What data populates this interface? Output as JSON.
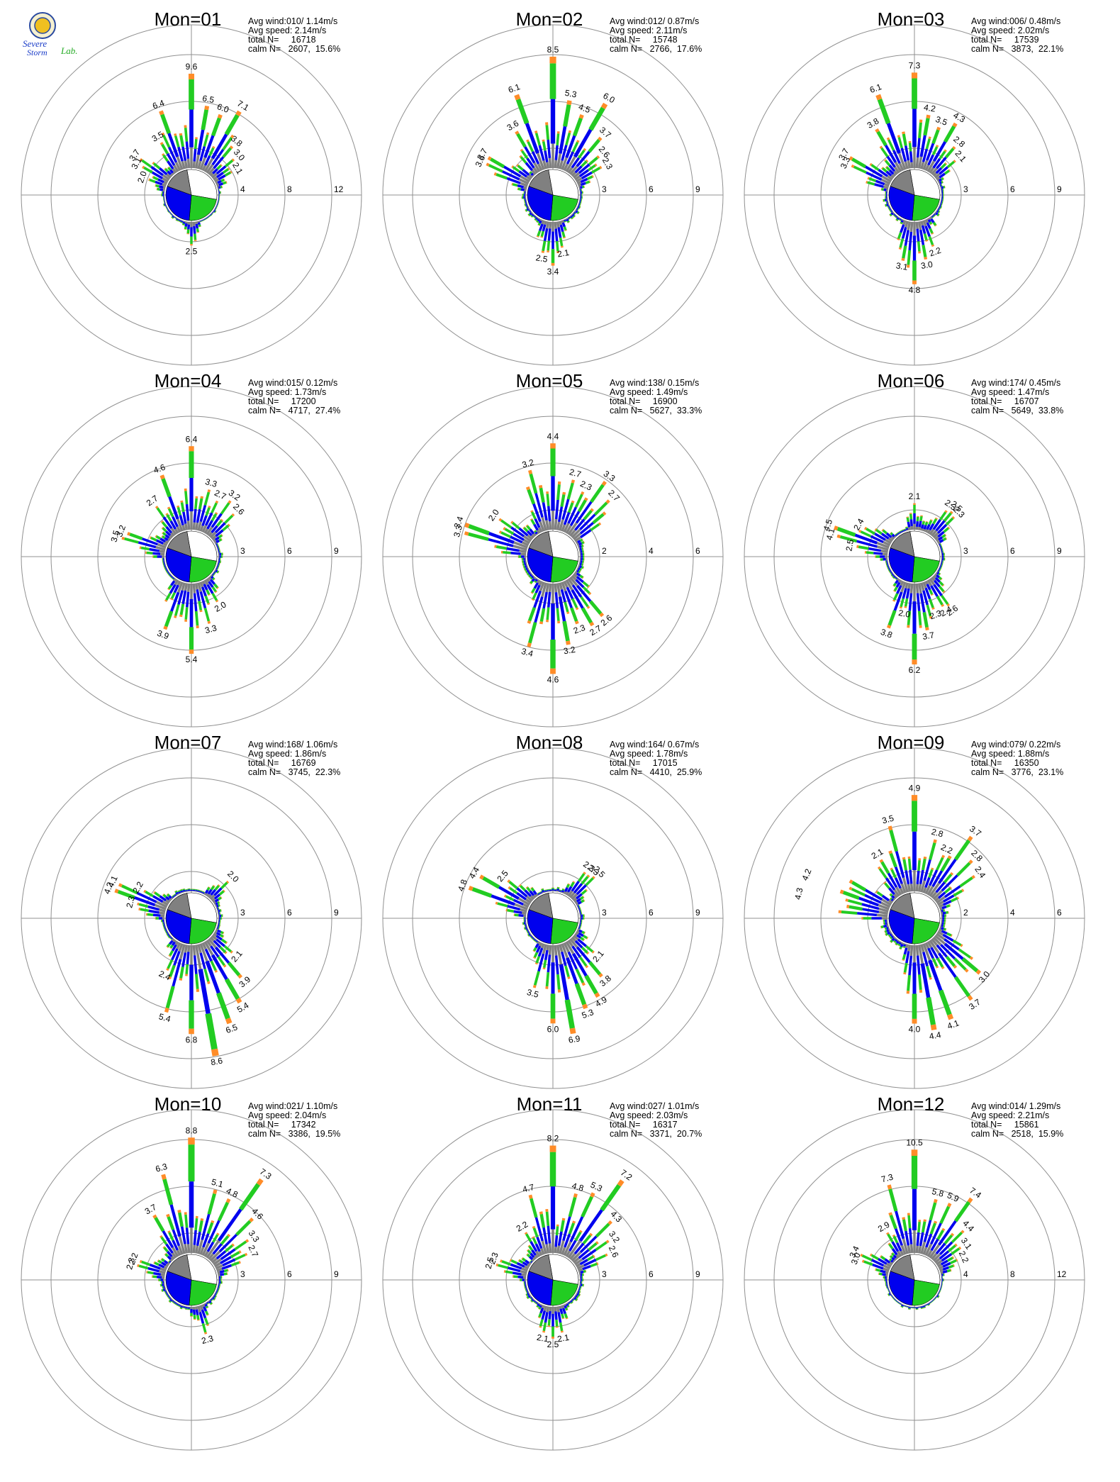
{
  "logo": {
    "text_top": "Severe",
    "text_bottom": "Storm",
    "text_lab": "Lab."
  },
  "colors": {
    "gray": "#808080",
    "blue": "#0000ee",
    "green": "#22cc22",
    "orange": "#ff8c28",
    "red": "#e00000",
    "ring": "#909090"
  },
  "chart_data": [
    {
      "type": "wind-rose",
      "title": "Mon=01",
      "stats": {
        "avg_wind": "Avg wind:010/ 1.14m/s",
        "avg_speed": "Avg speed: 2.14m/s",
        "total": "total N=     16718",
        "calm": "calm N=   2607,  15.6%"
      },
      "rings": [
        "4",
        "8",
        "12"
      ],
      "rmax": 14.5,
      "labels": [
        {
          "dir": 0,
          "v": "9.6"
        },
        {
          "dir": 10,
          "v": "6.5"
        },
        {
          "dir": 20,
          "v": "6.0"
        },
        {
          "dir": 30,
          "v": "7.1"
        },
        {
          "dir": 40,
          "v": "3.8"
        },
        {
          "dir": 50,
          "v": "3.0"
        },
        {
          "dir": 60,
          "v": "2.1"
        },
        {
          "dir": 340,
          "v": "6.4"
        },
        {
          "dir": 330,
          "v": "3.5"
        },
        {
          "dir": 290,
          "v": "2.0"
        },
        {
          "dir": 300,
          "v": "3.1"
        },
        {
          "dir": 305,
          "v": "3.7"
        },
        {
          "dir": 180,
          "v": "2.5"
        }
      ]
    },
    {
      "type": "wind-rose",
      "title": "Mon=02",
      "stats": {
        "avg_wind": "Avg wind:012/ 0.87m/s",
        "avg_speed": "Avg speed: 2.11m/s",
        "total": "total N=     15748",
        "calm": "calm N=   2766,  17.6%"
      },
      "rings": [
        "3",
        "6",
        "9"
      ],
      "rmax": 10.9,
      "labels": [
        {
          "dir": 0,
          "v": "8.5"
        },
        {
          "dir": 10,
          "v": "5.3"
        },
        {
          "dir": 20,
          "v": "4.5"
        },
        {
          "dir": 30,
          "v": "6.0"
        },
        {
          "dir": 40,
          "v": "3.7"
        },
        {
          "dir": 50,
          "v": "2.6"
        },
        {
          "dir": 60,
          "v": "2.3"
        },
        {
          "dir": 340,
          "v": "6.1"
        },
        {
          "dir": 330,
          "v": "3.6"
        },
        {
          "dir": 295,
          "v": "3.6"
        },
        {
          "dir": 300,
          "v": "3.7"
        },
        {
          "dir": 190,
          "v": "2.5"
        },
        {
          "dir": 180,
          "v": "3.4"
        },
        {
          "dir": 170,
          "v": "2.1"
        }
      ]
    },
    {
      "type": "wind-rose",
      "title": "Mon=03",
      "stats": {
        "avg_wind": "Avg wind:006/ 0.48m/s",
        "avg_speed": "Avg speed: 2.02m/s",
        "total": "total N=     17539",
        "calm": "calm N=   3873,  22.1%"
      },
      "rings": [
        "3",
        "6",
        "9"
      ],
      "rmax": 10.9,
      "labels": [
        {
          "dir": 0,
          "v": "7.3"
        },
        {
          "dir": 10,
          "v": "4.2"
        },
        {
          "dir": 20,
          "v": "3.5"
        },
        {
          "dir": 30,
          "v": "4.3"
        },
        {
          "dir": 40,
          "v": "2.8"
        },
        {
          "dir": 50,
          "v": "2.1"
        },
        {
          "dir": 340,
          "v": "6.1"
        },
        {
          "dir": 330,
          "v": "3.8"
        },
        {
          "dir": 295,
          "v": "3.3"
        },
        {
          "dir": 300,
          "v": "3.7"
        },
        {
          "dir": 190,
          "v": "3.1"
        },
        {
          "dir": 180,
          "v": "4.8"
        },
        {
          "dir": 170,
          "v": "3.0"
        },
        {
          "dir": 160,
          "v": "2.2"
        }
      ]
    },
    {
      "type": "wind-rose",
      "title": "Mon=04",
      "stats": {
        "avg_wind": "Avg wind:015/ 0.12m/s",
        "avg_speed": "Avg speed: 1.73m/s",
        "total": "total N=     17200",
        "calm": "calm N=   4717,  27.4%"
      },
      "rings": [
        "3",
        "6",
        "9"
      ],
      "rmax": 10.9,
      "labels": [
        {
          "dir": 0,
          "v": "6.4"
        },
        {
          "dir": 340,
          "v": "4.6"
        },
        {
          "dir": 325,
          "v": "2.7"
        },
        {
          "dir": 15,
          "v": "3.3"
        },
        {
          "dir": 25,
          "v": "2.7"
        },
        {
          "dir": 35,
          "v": "3.2"
        },
        {
          "dir": 45,
          "v": "2.6"
        },
        {
          "dir": 285,
          "v": "3.5"
        },
        {
          "dir": 290,
          "v": "3.2"
        },
        {
          "dir": 200,
          "v": "3.9"
        },
        {
          "dir": 180,
          "v": "5.4"
        },
        {
          "dir": 165,
          "v": "3.3"
        },
        {
          "dir": 150,
          "v": "2.0"
        }
      ]
    },
    {
      "type": "wind-rose",
      "title": "Mon=05",
      "stats": {
        "avg_wind": "Avg wind:138/ 0.15m/s",
        "avg_speed": "Avg speed: 1.49m/s",
        "total": "total N=     16900",
        "calm": "calm N=   5627,  33.3%"
      },
      "rings": [
        "2",
        "4",
        "6"
      ],
      "rmax": 7.25,
      "labels": [
        {
          "dir": 0,
          "v": "4.4"
        },
        {
          "dir": 345,
          "v": "3.2"
        },
        {
          "dir": 15,
          "v": "2.7"
        },
        {
          "dir": 25,
          "v": "2.3"
        },
        {
          "dir": 35,
          "v": "3.3"
        },
        {
          "dir": 45,
          "v": "2.7"
        },
        {
          "dir": 285,
          "v": "3.3"
        },
        {
          "dir": 290,
          "v": "3.4"
        },
        {
          "dir": 305,
          "v": "2.0"
        },
        {
          "dir": 195,
          "v": "3.4"
        },
        {
          "dir": 180,
          "v": "4.6"
        },
        {
          "dir": 170,
          "v": "3.2"
        },
        {
          "dir": 160,
          "v": "2.3"
        },
        {
          "dir": 150,
          "v": "2.7"
        },
        {
          "dir": 140,
          "v": "2.6"
        }
      ]
    },
    {
      "type": "wind-rose",
      "title": "Mon=06",
      "stats": {
        "avg_wind": "Avg wind:174/ 0.45m/s",
        "avg_speed": "Avg speed: 1.47m/s",
        "total": "total N=     16707",
        "calm": "calm N=   5649,  33.8%"
      },
      "rings": [
        "3",
        "6",
        "9"
      ],
      "rmax": 10.9,
      "labels": [
        {
          "dir": 0,
          "v": "2.1"
        },
        {
          "dir": 35,
          "v": "2.3"
        },
        {
          "dir": 40,
          "v": "2.5"
        },
        {
          "dir": 45,
          "v": "2.3"
        },
        {
          "dir": 280,
          "v": "2.5"
        },
        {
          "dir": 285,
          "v": "4.1"
        },
        {
          "dir": 290,
          "v": "4.5"
        },
        {
          "dir": 300,
          "v": "2.4"
        },
        {
          "dir": 200,
          "v": "3.8"
        },
        {
          "dir": 190,
          "v": "2.0"
        },
        {
          "dir": 180,
          "v": "6.2"
        },
        {
          "dir": 170,
          "v": "3.7"
        },
        {
          "dir": 160,
          "v": "2.3"
        },
        {
          "dir": 150,
          "v": "2.4"
        },
        {
          "dir": 145,
          "v": "2.6"
        }
      ]
    },
    {
      "type": "wind-rose",
      "title": "Mon=07",
      "stats": {
        "avg_wind": "Avg wind:168/ 1.06m/s",
        "avg_speed": "Avg speed: 1.86m/s",
        "total": "total N=     16769",
        "calm": "calm N=   3745,  22.3%"
      },
      "rings": [
        "3",
        "6",
        "9"
      ],
      "rmax": 10.9,
      "labels": [
        {
          "dir": 45,
          "v": "2.0"
        },
        {
          "dir": 285,
          "v": "2.3"
        },
        {
          "dir": 290,
          "v": "4.2"
        },
        {
          "dir": 295,
          "v": "4.1"
        },
        {
          "dir": 300,
          "v": "2.2"
        },
        {
          "dir": 205,
          "v": "2.4"
        },
        {
          "dir": 195,
          "v": "5.4"
        },
        {
          "dir": 180,
          "v": "6.8"
        },
        {
          "dir": 170,
          "v": "8.6"
        },
        {
          "dir": 160,
          "v": "6.5"
        },
        {
          "dir": 150,
          "v": "5.4"
        },
        {
          "dir": 140,
          "v": "3.9"
        },
        {
          "dir": 130,
          "v": "2.1"
        }
      ]
    },
    {
      "type": "wind-rose",
      "title": "Mon=08",
      "stats": {
        "avg_wind": "Avg wind:164/ 0.67m/s",
        "avg_speed": "Avg speed: 1.78m/s",
        "total": "total N=     17015",
        "calm": "calm N=   4410,  25.9%"
      },
      "rings": [
        "3",
        "6",
        "9"
      ],
      "rmax": 10.9,
      "labels": [
        {
          "dir": 35,
          "v": "2.3"
        },
        {
          "dir": 40,
          "v": "2.3"
        },
        {
          "dir": 45,
          "v": "2.5"
        },
        {
          "dir": 290,
          "v": "4.8"
        },
        {
          "dir": 300,
          "v": "4.4"
        },
        {
          "dir": 310,
          "v": "2.5"
        },
        {
          "dir": 195,
          "v": "3.5"
        },
        {
          "dir": 180,
          "v": "6.0"
        },
        {
          "dir": 170,
          "v": "6.9"
        },
        {
          "dir": 160,
          "v": "5.3"
        },
        {
          "dir": 150,
          "v": "4.9"
        },
        {
          "dir": 140,
          "v": "3.8"
        },
        {
          "dir": 130,
          "v": "2.1"
        }
      ]
    },
    {
      "type": "wind-rose",
      "title": "Mon=09",
      "stats": {
        "avg_wind": "Avg wind:079/ 0.22m/s",
        "avg_speed": "Avg speed: 1.88m/s",
        "total": "total N=     16350",
        "calm": "calm N=   3776,  23.1%"
      },
      "rings": [
        "2",
        "4",
        "6"
      ],
      "rmax": 7.25,
      "labels": [
        {
          "dir": 0,
          "v": "4.9"
        },
        {
          "dir": 345,
          "v": "3.5"
        },
        {
          "dir": 330,
          "v": "2.1"
        },
        {
          "dir": 15,
          "v": "2.8"
        },
        {
          "dir": 25,
          "v": "2.2"
        },
        {
          "dir": 35,
          "v": "3.7"
        },
        {
          "dir": 45,
          "v": "2.8"
        },
        {
          "dir": 55,
          "v": "2.4"
        },
        {
          "dir": 282,
          "v": "4.3"
        },
        {
          "dir": 292,
          "v": "4.2"
        },
        {
          "dir": 180,
          "v": "4.0"
        },
        {
          "dir": 170,
          "v": "4.4"
        },
        {
          "dir": 160,
          "v": "4.1"
        },
        {
          "dir": 145,
          "v": "3.7"
        },
        {
          "dir": 130,
          "v": "3.0"
        }
      ]
    },
    {
      "type": "wind-rose",
      "title": "Mon=10",
      "stats": {
        "avg_wind": "Avg wind:021/ 1.10m/s",
        "avg_speed": "Avg speed: 2.04m/s",
        "total": "total N=     17342",
        "calm": "calm N=   3386,  19.5%"
      },
      "rings": [
        "3",
        "6",
        "9"
      ],
      "rmax": 10.9,
      "labels": [
        {
          "dir": 0,
          "v": "8.8"
        },
        {
          "dir": 345,
          "v": "6.3"
        },
        {
          "dir": 330,
          "v": "3.7"
        },
        {
          "dir": 15,
          "v": "5.1"
        },
        {
          "dir": 25,
          "v": "4.8"
        },
        {
          "dir": 35,
          "v": "7.3"
        },
        {
          "dir": 45,
          "v": "4.6"
        },
        {
          "dir": 55,
          "v": "3.3"
        },
        {
          "dir": 65,
          "v": "2.7"
        },
        {
          "dir": 285,
          "v": "2.3"
        },
        {
          "dir": 290,
          "v": "2.2"
        },
        {
          "dir": 165,
          "v": "2.3"
        }
      ]
    },
    {
      "type": "wind-rose",
      "title": "Mon=11",
      "stats": {
        "avg_wind": "Avg wind:027/ 1.01m/s",
        "avg_speed": "Avg speed: 2.03m/s",
        "total": "total N=     16317",
        "calm": "calm N=   3371,  20.7%"
      },
      "rings": [
        "3",
        "6",
        "9"
      ],
      "rmax": 10.9,
      "labels": [
        {
          "dir": 0,
          "v": "8.2"
        },
        {
          "dir": 345,
          "v": "4.7"
        },
        {
          "dir": 330,
          "v": "2.2"
        },
        {
          "dir": 15,
          "v": "4.8"
        },
        {
          "dir": 25,
          "v": "5.3"
        },
        {
          "dir": 35,
          "v": "7.2"
        },
        {
          "dir": 45,
          "v": "4.3"
        },
        {
          "dir": 55,
          "v": "3.2"
        },
        {
          "dir": 65,
          "v": "2.6"
        },
        {
          "dir": 285,
          "v": "2.5"
        },
        {
          "dir": 290,
          "v": "2.3"
        },
        {
          "dir": 190,
          "v": "2.1"
        },
        {
          "dir": 180,
          "v": "2.5"
        },
        {
          "dir": 170,
          "v": "2.1"
        }
      ]
    },
    {
      "type": "wind-rose",
      "title": "Mon=12",
      "stats": {
        "avg_wind": "Avg wind:014/ 1.29m/s",
        "avg_speed": "Avg speed: 2.21m/s",
        "total": "total N=     15861",
        "calm": "calm N=   2518,  15.9%"
      },
      "rings": [
        "4",
        "8",
        "12"
      ],
      "rmax": 14.5,
      "labels": [
        {
          "dir": 0,
          "v": "10.5"
        },
        {
          "dir": 345,
          "v": "7.3"
        },
        {
          "dir": 330,
          "v": "2.9"
        },
        {
          "dir": 15,
          "v": "5.8"
        },
        {
          "dir": 25,
          "v": "5.9"
        },
        {
          "dir": 35,
          "v": "7.4"
        },
        {
          "dir": 45,
          "v": "4.4"
        },
        {
          "dir": 55,
          "v": "3.1"
        },
        {
          "dir": 65,
          "v": "2.2"
        },
        {
          "dir": 290,
          "v": "3.0"
        },
        {
          "dir": 295,
          "v": "3.4"
        }
      ]
    }
  ]
}
